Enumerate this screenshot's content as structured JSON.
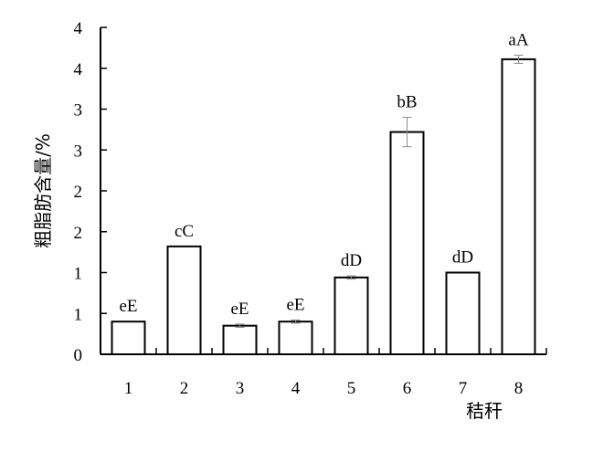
{
  "chart_data": {
    "type": "bar",
    "categories": [
      "1",
      "2",
      "3",
      "4",
      "5",
      "6",
      "7",
      "8"
    ],
    "values": [
      0.4,
      1.32,
      0.35,
      0.4,
      0.94,
      2.72,
      1.0,
      3.61
    ],
    "errors": [
      0.0,
      0.0,
      0.02,
      0.02,
      0.02,
      0.18,
      0.0,
      0.05
    ],
    "labels": [
      "eE",
      "cC",
      "eE",
      "eE",
      "dD",
      "bB",
      "dD",
      "aA"
    ],
    "xlabel": "秸秆",
    "ylabel": "粗脂肪含量/%",
    "ylim": [
      0,
      4
    ],
    "yticks": [
      0,
      0.5,
      1,
      1.5,
      2,
      2.5,
      3,
      3.5,
      4
    ],
    "ytick_labels": [
      "0",
      "1",
      "1",
      "2",
      "2",
      "3",
      "3",
      "4",
      "4"
    ],
    "grid": false,
    "colors": {
      "bar_fill": "#ffffff",
      "bar_edge": "#000000",
      "error_bar": "#8a8a8a"
    }
  }
}
